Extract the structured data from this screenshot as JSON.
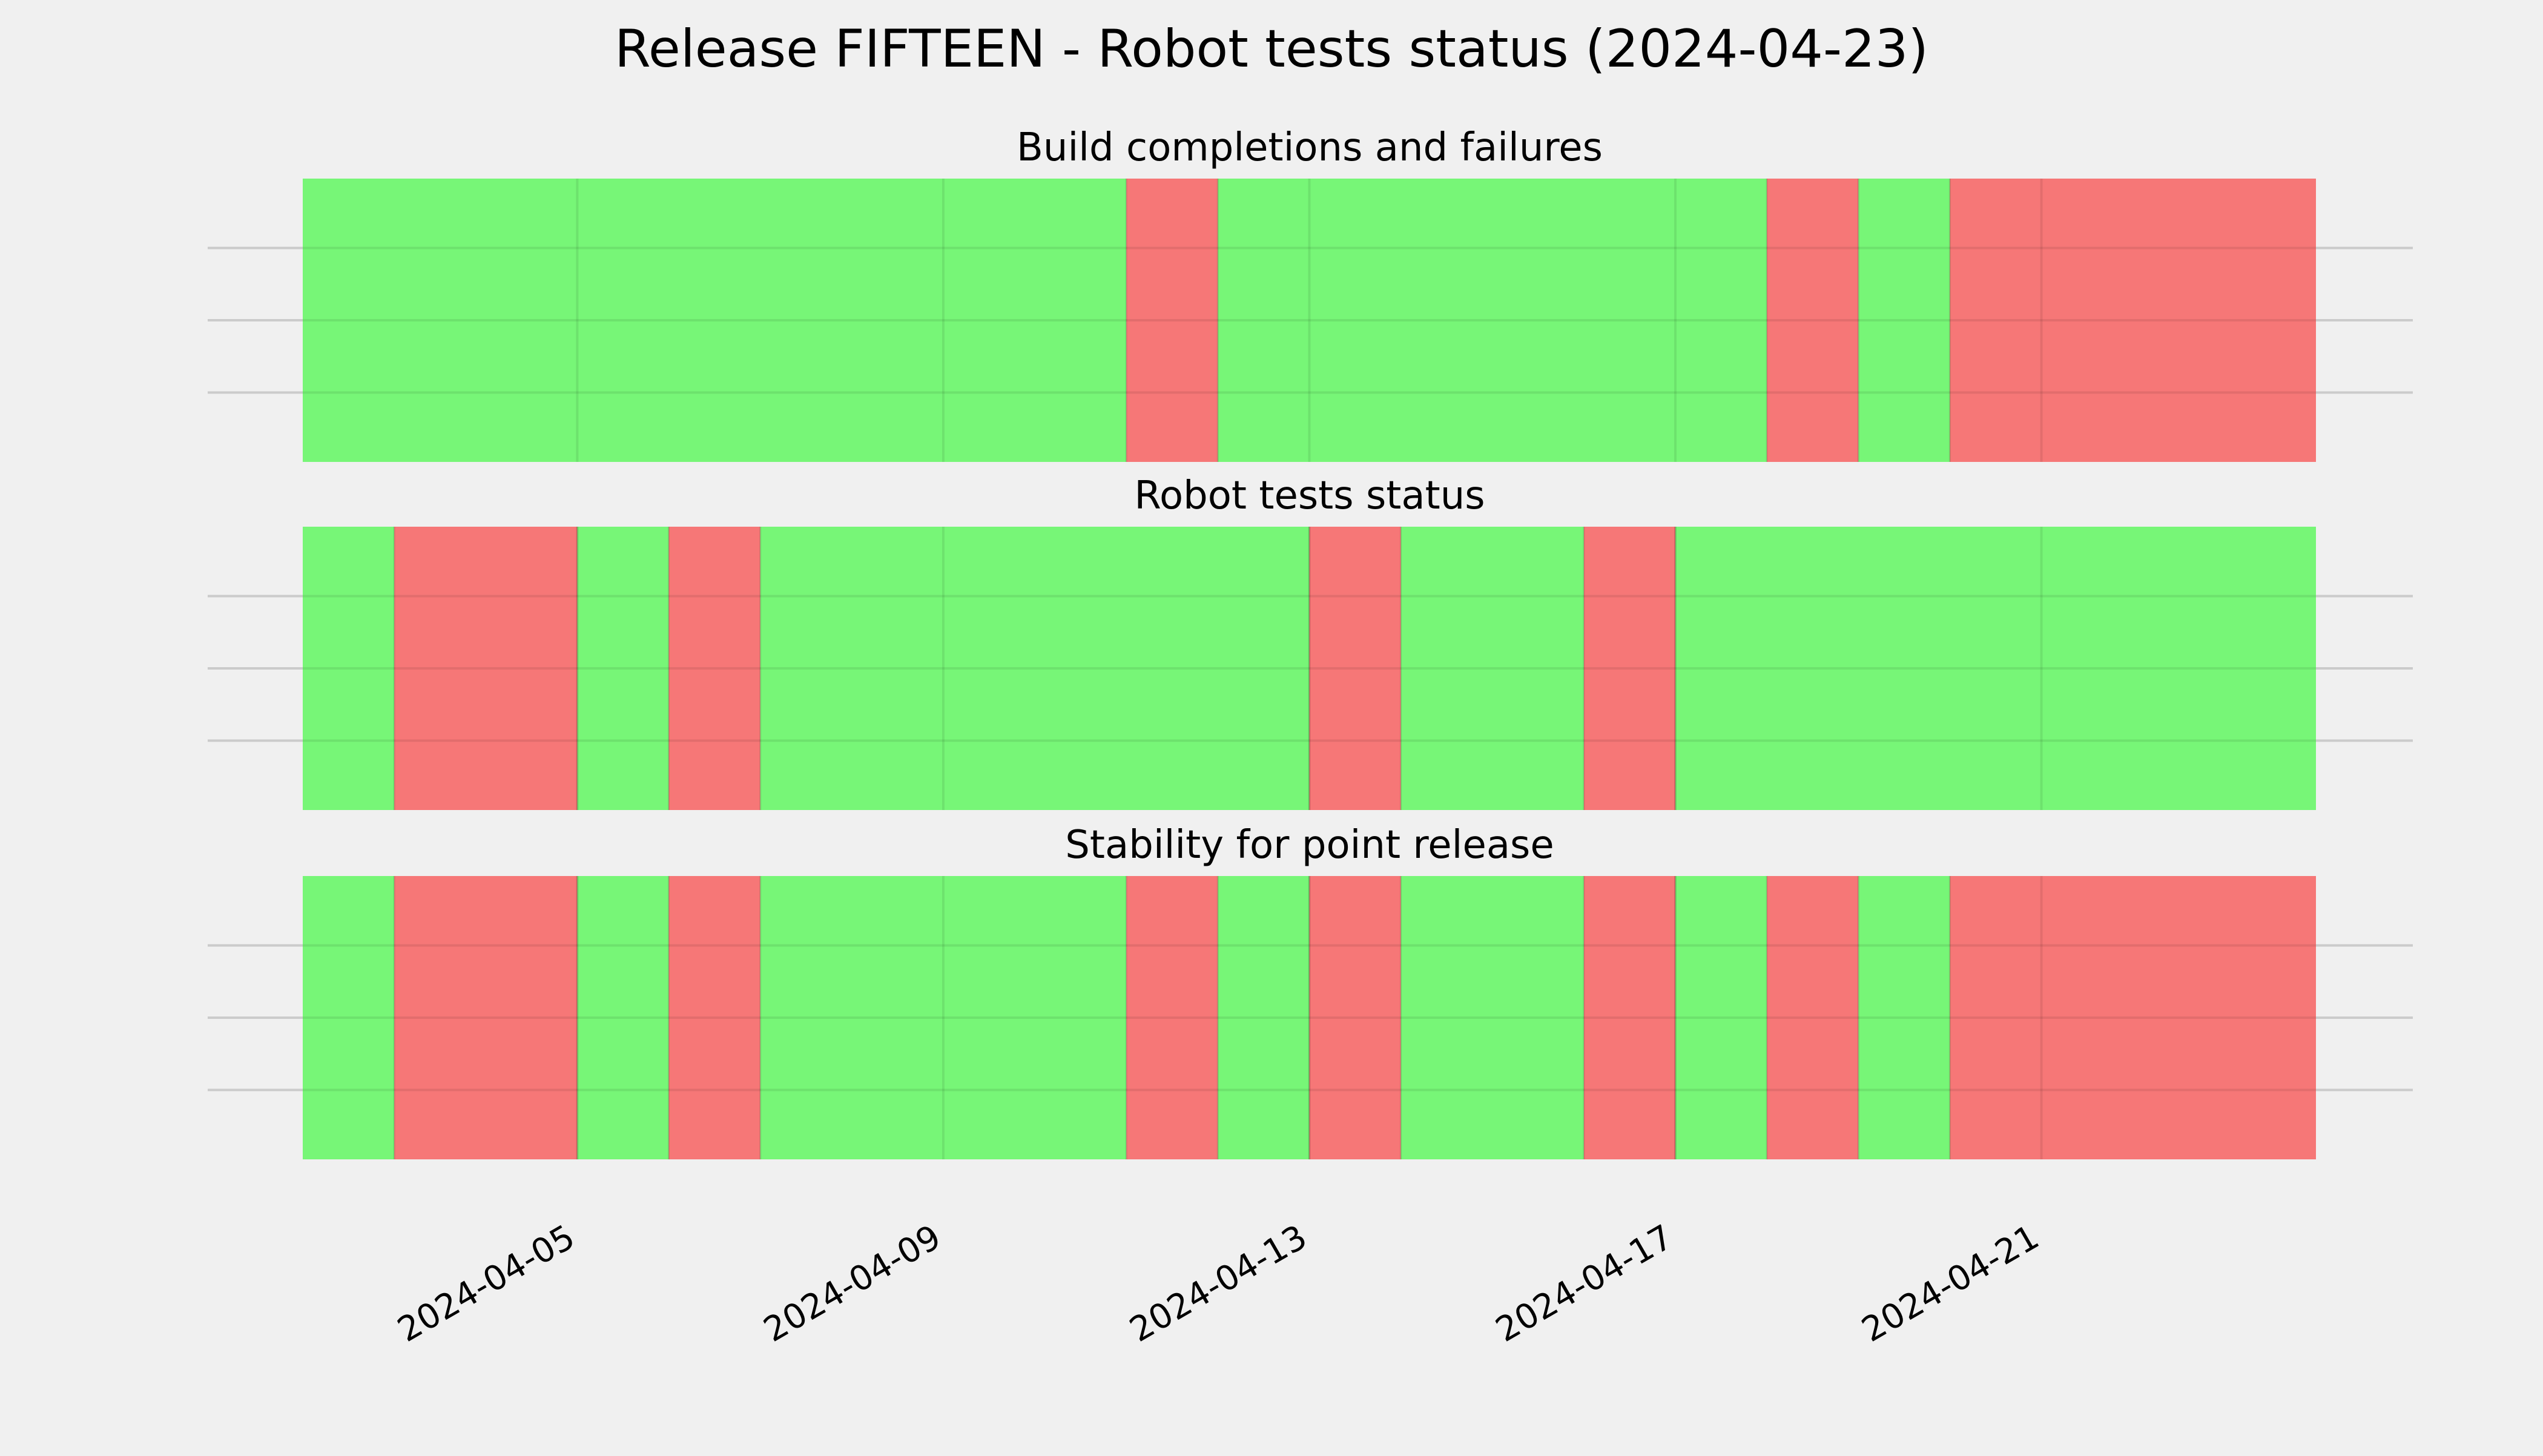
{
  "page": {
    "title": "Release FIFTEEN - Robot tests status (2024-04-23)"
  },
  "colors": {
    "background": "#f0f0f0",
    "pass": "#77f677",
    "fail": "#f67777",
    "grid": "#cbcbcb"
  },
  "chart_data": {
    "type": "timeline",
    "x_axis": {
      "kind": "date",
      "range": [
        "2024-04-02",
        "2024-04-24"
      ],
      "ticks": [
        "2024-04-05",
        "2024-04-09",
        "2024-04-13",
        "2024-04-17",
        "2024-04-21"
      ],
      "tick_label_rotation": "30°"
    },
    "y_axis": {
      "tick_labels_shown": false
    },
    "grid": true,
    "panels": [
      {
        "title": "Build completions and failures",
        "segments": [
          {
            "start": "2024-04-02",
            "end": "2024-04-11",
            "status": "pass"
          },
          {
            "start": "2024-04-11",
            "end": "2024-04-12",
            "status": "fail"
          },
          {
            "start": "2024-04-12",
            "end": "2024-04-18",
            "status": "pass"
          },
          {
            "start": "2024-04-18",
            "end": "2024-04-19",
            "status": "fail"
          },
          {
            "start": "2024-04-19",
            "end": "2024-04-20",
            "status": "pass"
          },
          {
            "start": "2024-04-20",
            "end": "2024-04-24",
            "status": "fail"
          }
        ]
      },
      {
        "title": "Robot tests status",
        "segments": [
          {
            "start": "2024-04-02",
            "end": "2024-04-03",
            "status": "pass"
          },
          {
            "start": "2024-04-03",
            "end": "2024-04-05",
            "status": "fail"
          },
          {
            "start": "2024-04-05",
            "end": "2024-04-06",
            "status": "pass"
          },
          {
            "start": "2024-04-06",
            "end": "2024-04-07",
            "status": "fail"
          },
          {
            "start": "2024-04-07",
            "end": "2024-04-13",
            "status": "pass"
          },
          {
            "start": "2024-04-13",
            "end": "2024-04-14",
            "status": "fail"
          },
          {
            "start": "2024-04-14",
            "end": "2024-04-16",
            "status": "pass"
          },
          {
            "start": "2024-04-16",
            "end": "2024-04-17",
            "status": "fail"
          },
          {
            "start": "2024-04-17",
            "end": "2024-04-24",
            "status": "pass"
          }
        ]
      },
      {
        "title": "Stability for point release",
        "segments": [
          {
            "start": "2024-04-02",
            "end": "2024-04-03",
            "status": "pass"
          },
          {
            "start": "2024-04-03",
            "end": "2024-04-05",
            "status": "fail"
          },
          {
            "start": "2024-04-05",
            "end": "2024-04-06",
            "status": "pass"
          },
          {
            "start": "2024-04-06",
            "end": "2024-04-07",
            "status": "fail"
          },
          {
            "start": "2024-04-07",
            "end": "2024-04-11",
            "status": "pass"
          },
          {
            "start": "2024-04-11",
            "end": "2024-04-12",
            "status": "fail"
          },
          {
            "start": "2024-04-12",
            "end": "2024-04-13",
            "status": "pass"
          },
          {
            "start": "2024-04-13",
            "end": "2024-04-14",
            "status": "fail"
          },
          {
            "start": "2024-04-14",
            "end": "2024-04-16",
            "status": "pass"
          },
          {
            "start": "2024-04-16",
            "end": "2024-04-17",
            "status": "fail"
          },
          {
            "start": "2024-04-17",
            "end": "2024-04-18",
            "status": "pass"
          },
          {
            "start": "2024-04-18",
            "end": "2024-04-19",
            "status": "fail"
          },
          {
            "start": "2024-04-19",
            "end": "2024-04-20",
            "status": "pass"
          },
          {
            "start": "2024-04-20",
            "end": "2024-04-24",
            "status": "fail"
          }
        ]
      }
    ]
  }
}
